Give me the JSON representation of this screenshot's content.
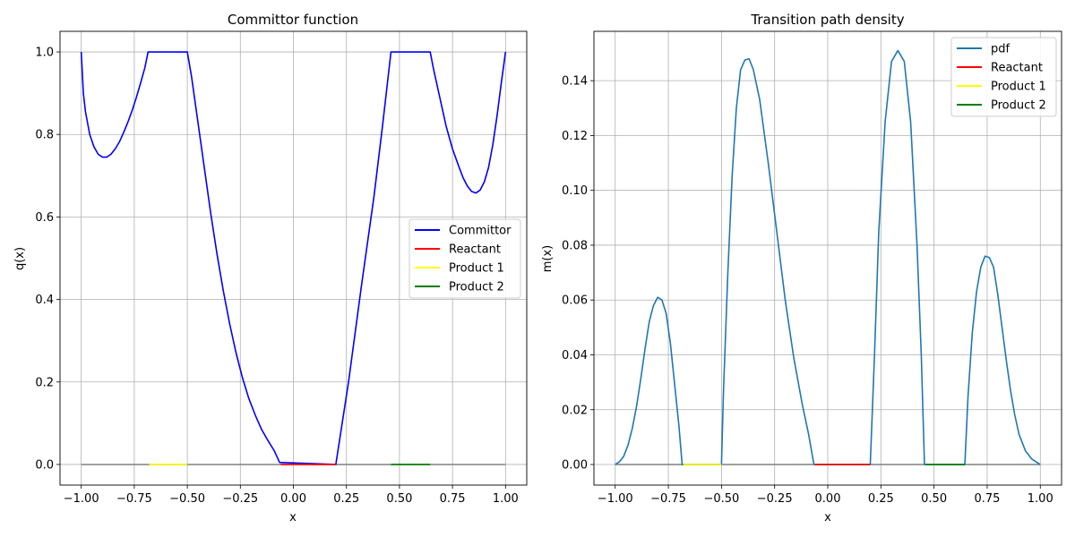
{
  "chart_data": [
    {
      "type": "line",
      "title": "Committor function",
      "xlabel": "x",
      "ylabel": "q(x)",
      "xlim": [
        -1.1,
        1.1
      ],
      "ylim": [
        -0.05,
        1.05
      ],
      "xticks": [
        -1.0,
        -0.75,
        -0.5,
        -0.25,
        0.0,
        0.25,
        0.5,
        0.75,
        1.0
      ],
      "xtick_labels": [
        "−1.00",
        "−0.75",
        "−0.50",
        "−0.25",
        "0.00",
        "0.25",
        "0.50",
        "0.75",
        "1.00"
      ],
      "yticks": [
        0.0,
        0.2,
        0.4,
        0.6,
        0.8,
        1.0
      ],
      "ytick_labels": [
        "0.0",
        "0.2",
        "0.4",
        "0.6",
        "0.8",
        "1.0"
      ],
      "grid": true,
      "legend_position": "center-right",
      "series": [
        {
          "name": "Committor",
          "color": "#0000ff",
          "points": [
            [
              -1.0,
              1.0
            ],
            [
              -0.99,
              0.9
            ],
            [
              -0.98,
              0.855
            ],
            [
              -0.96,
              0.8
            ],
            [
              -0.94,
              0.77
            ],
            [
              -0.92,
              0.752
            ],
            [
              -0.9,
              0.745
            ],
            [
              -0.88,
              0.745
            ],
            [
              -0.86,
              0.752
            ],
            [
              -0.84,
              0.765
            ],
            [
              -0.82,
              0.782
            ],
            [
              -0.8,
              0.805
            ],
            [
              -0.78,
              0.83
            ],
            [
              -0.76,
              0.858
            ],
            [
              -0.74,
              0.89
            ],
            [
              -0.72,
              0.925
            ],
            [
              -0.7,
              0.962
            ],
            [
              -0.685,
              1.0
            ],
            [
              -0.5,
              1.0
            ],
            [
              -0.48,
              0.94
            ],
            [
              -0.45,
              0.83
            ],
            [
              -0.42,
              0.72
            ],
            [
              -0.39,
              0.61
            ],
            [
              -0.36,
              0.51
            ],
            [
              -0.33,
              0.42
            ],
            [
              -0.3,
              0.34
            ],
            [
              -0.27,
              0.27
            ],
            [
              -0.24,
              0.21
            ],
            [
              -0.21,
              0.16
            ],
            [
              -0.18,
              0.12
            ],
            [
              -0.15,
              0.085
            ],
            [
              -0.12,
              0.058
            ],
            [
              -0.09,
              0.033
            ],
            [
              -0.065,
              0.005
            ],
            [
              0.2,
              0.0
            ],
            [
              0.26,
              0.2
            ],
            [
              0.32,
              0.43
            ],
            [
              0.38,
              0.65
            ],
            [
              0.42,
              0.82
            ],
            [
              0.46,
              1.0
            ],
            [
              0.645,
              1.0
            ],
            [
              0.66,
              0.96
            ],
            [
              0.69,
              0.89
            ],
            [
              0.72,
              0.82
            ],
            [
              0.75,
              0.765
            ],
            [
              0.78,
              0.722
            ],
            [
              0.8,
              0.695
            ],
            [
              0.82,
              0.675
            ],
            [
              0.84,
              0.662
            ],
            [
              0.86,
              0.658
            ],
            [
              0.88,
              0.665
            ],
            [
              0.9,
              0.685
            ],
            [
              0.92,
              0.72
            ],
            [
              0.94,
              0.775
            ],
            [
              0.96,
              0.845
            ],
            [
              0.98,
              0.925
            ],
            [
              1.0,
              1.0
            ]
          ]
        },
        {
          "name": "Reactant",
          "color": "#ff0000",
          "points": [
            [
              -0.06,
              0.0
            ],
            [
              0.2,
              0.0
            ]
          ]
        },
        {
          "name": "Product 1",
          "color": "#ffff00",
          "points": [
            [
              -0.68,
              0.0
            ],
            [
              -0.5,
              0.0
            ]
          ]
        },
        {
          "name": "Product 2",
          "color": "#008000",
          "points": [
            [
              0.46,
              0.0
            ],
            [
              0.645,
              0.0
            ]
          ]
        }
      ],
      "baseline": {
        "color": "#808080",
        "points": [
          [
            -1.0,
            0.0
          ],
          [
            1.0,
            0.0
          ]
        ]
      }
    },
    {
      "type": "line",
      "title": "Transition path density",
      "xlabel": "x",
      "ylabel": "m(x)",
      "xlim": [
        -1.1,
        1.1
      ],
      "ylim": [
        -0.0075,
        0.158
      ],
      "xticks": [
        -1.0,
        -0.75,
        -0.5,
        -0.25,
        0.0,
        0.25,
        0.5,
        0.75,
        1.0
      ],
      "xtick_labels": [
        "−1.00",
        "−0.75",
        "−0.50",
        "−0.25",
        "0.00",
        "0.25",
        "0.50",
        "0.75",
        "1.00"
      ],
      "yticks": [
        0.0,
        0.02,
        0.04,
        0.06,
        0.08,
        0.1,
        0.12,
        0.14
      ],
      "ytick_labels": [
        "0.00",
        "0.02",
        "0.04",
        "0.06",
        "0.08",
        "0.10",
        "0.12",
        "0.14"
      ],
      "grid": true,
      "legend_position": "top-right",
      "series": [
        {
          "name": "pdf",
          "color": "#1f77b4",
          "points": [
            [
              -1.0,
              0.0
            ],
            [
              -0.98,
              0.001
            ],
            [
              -0.96,
              0.003
            ],
            [
              -0.94,
              0.007
            ],
            [
              -0.92,
              0.013
            ],
            [
              -0.9,
              0.021
            ],
            [
              -0.88,
              0.031
            ],
            [
              -0.86,
              0.042
            ],
            [
              -0.84,
              0.052
            ],
            [
              -0.82,
              0.058
            ],
            [
              -0.8,
              0.061
            ],
            [
              -0.78,
              0.06
            ],
            [
              -0.76,
              0.055
            ],
            [
              -0.74,
              0.044
            ],
            [
              -0.72,
              0.029
            ],
            [
              -0.7,
              0.014
            ],
            [
              -0.685,
              0.0
            ],
            [
              -0.5,
              0.0
            ],
            [
              -0.49,
              0.028
            ],
            [
              -0.47,
              0.07
            ],
            [
              -0.45,
              0.105
            ],
            [
              -0.43,
              0.13
            ],
            [
              -0.41,
              0.144
            ],
            [
              -0.39,
              0.1475
            ],
            [
              -0.37,
              0.148
            ],
            [
              -0.35,
              0.144
            ],
            [
              -0.32,
              0.133
            ],
            [
              -0.28,
              0.11
            ],
            [
              -0.24,
              0.085
            ],
            [
              -0.2,
              0.06
            ],
            [
              -0.16,
              0.039
            ],
            [
              -0.12,
              0.022
            ],
            [
              -0.09,
              0.011
            ],
            [
              -0.065,
              0.0
            ],
            [
              0.2,
              0.0
            ],
            [
              0.22,
              0.04
            ],
            [
              0.24,
              0.085
            ],
            [
              0.27,
              0.125
            ],
            [
              0.3,
              0.147
            ],
            [
              0.33,
              0.151
            ],
            [
              0.36,
              0.147
            ],
            [
              0.39,
              0.125
            ],
            [
              0.42,
              0.08
            ],
            [
              0.44,
              0.04
            ],
            [
              0.455,
              0.0
            ],
            [
              0.645,
              0.0
            ],
            [
              0.66,
              0.025
            ],
            [
              0.68,
              0.048
            ],
            [
              0.7,
              0.063
            ],
            [
              0.72,
              0.072
            ],
            [
              0.74,
              0.076
            ],
            [
              0.76,
              0.0755
            ],
            [
              0.78,
              0.072
            ],
            [
              0.8,
              0.062
            ],
            [
              0.82,
              0.05
            ],
            [
              0.84,
              0.038
            ],
            [
              0.86,
              0.027
            ],
            [
              0.88,
              0.018
            ],
            [
              0.9,
              0.011
            ],
            [
              0.93,
              0.005
            ],
            [
              0.96,
              0.002
            ],
            [
              1.0,
              0.0
            ]
          ]
        },
        {
          "name": "Reactant",
          "color": "#ff0000",
          "points": [
            [
              -0.06,
              0.0
            ],
            [
              0.2,
              0.0
            ]
          ]
        },
        {
          "name": "Product 1",
          "color": "#ffff00",
          "points": [
            [
              -0.68,
              0.0
            ],
            [
              -0.5,
              0.0
            ]
          ]
        },
        {
          "name": "Product 2",
          "color": "#008000",
          "points": [
            [
              0.46,
              0.0
            ],
            [
              0.645,
              0.0
            ]
          ]
        }
      ],
      "baseline": {
        "color": "#808080",
        "points": [
          [
            -1.0,
            0.0
          ],
          [
            1.0,
            0.0
          ]
        ]
      }
    }
  ]
}
